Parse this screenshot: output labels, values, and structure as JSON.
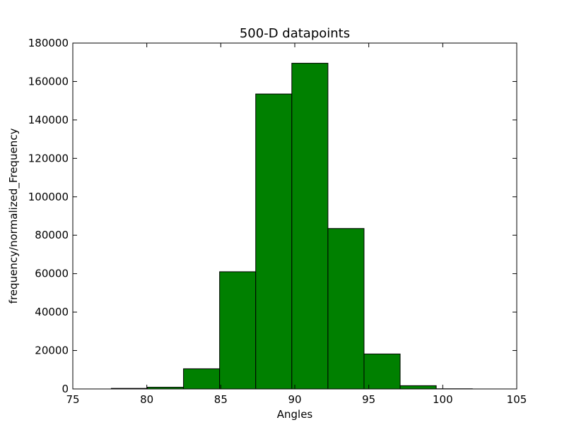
{
  "chart_data": {
    "type": "bar",
    "title": "500-D datapoints",
    "xlabel": "Angles",
    "ylabel": "frequency/normalized_Frequency",
    "xlim": [
      75,
      105
    ],
    "ylim": [
      0,
      180000
    ],
    "xticks": [
      "75",
      "80",
      "85",
      "90",
      "95",
      "100",
      "105"
    ],
    "yticks": [
      "0",
      "20000",
      "40000",
      "60000",
      "80000",
      "100000",
      "120000",
      "140000",
      "160000",
      "180000"
    ],
    "bin_edges": [
      77.6,
      80.04,
      82.48,
      84.92,
      87.36,
      89.8,
      92.24,
      94.68,
      97.12,
      99.56,
      102.0
    ],
    "values": [
      300,
      900,
      10500,
      61000,
      153500,
      169500,
      83500,
      18200,
      1700,
      100
    ],
    "bar_color": "#008000",
    "edge_color": "#000000",
    "grid": false
  }
}
